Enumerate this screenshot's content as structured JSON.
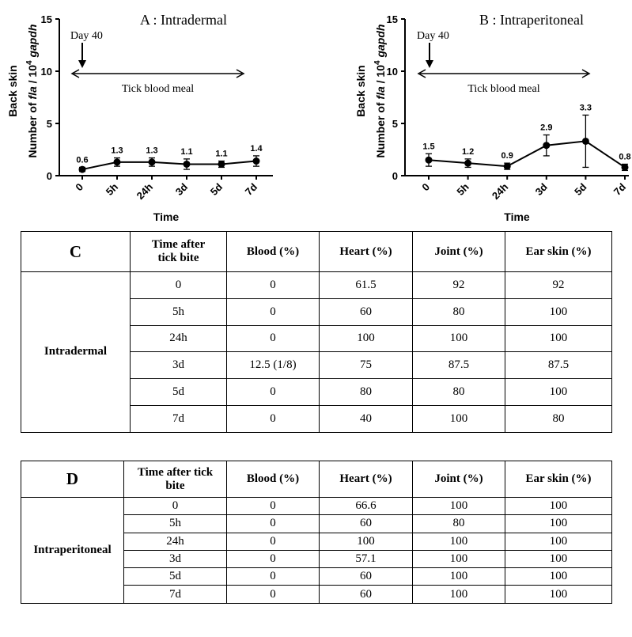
{
  "chart_data": [
    {
      "type": "line",
      "title": "A : Intradermal",
      "ylabel_line1": "Back skin",
      "ylabel_pre": "Number of ",
      "ylabel_fla": "fla",
      "ylabel_mid": " / 10",
      "ylabel_sup": "4",
      "ylabel_gapdh": "gapdh",
      "xlabel": "Time",
      "ylim": [
        0,
        15
      ],
      "yticks": [
        "0",
        "5",
        "10",
        "15"
      ],
      "categories": [
        "0",
        "5h",
        "24h",
        "3d",
        "5d",
        "7d"
      ],
      "values": [
        0.6,
        1.3,
        1.3,
        1.1,
        1.1,
        1.4
      ],
      "value_labels": [
        "0.6",
        "1.3",
        "1.3",
        "1.1",
        "1.1",
        "1.4"
      ],
      "errors": [
        0.2,
        0.4,
        0.4,
        0.5,
        0.3,
        0.5
      ],
      "annotation_day": "Day 40",
      "annotation_meal": "Tick blood meal"
    },
    {
      "type": "line",
      "title": "B : Intraperitoneal",
      "ylabel_line1": "Back skin",
      "ylabel_pre": "Number of ",
      "ylabel_fla": "fla",
      "ylabel_mid": " / 10",
      "ylabel_sup": "4",
      "ylabel_gapdh": "gapdh",
      "xlabel": "Time",
      "ylim": [
        0,
        15
      ],
      "yticks": [
        "0",
        "5",
        "10",
        "15"
      ],
      "categories": [
        "0",
        "5h",
        "24h",
        "3d",
        "5d",
        "7d"
      ],
      "values": [
        1.5,
        1.2,
        0.9,
        2.9,
        3.3,
        0.8
      ],
      "value_labels": [
        "1.5",
        "1.2",
        "0.9",
        "2.9",
        "3.3",
        "0.8"
      ],
      "errors": [
        0.6,
        0.4,
        0.3,
        1.0,
        2.5,
        0.3
      ],
      "annotation_day": "Day 40",
      "annotation_meal": "Tick blood meal"
    }
  ],
  "tables": {
    "C": {
      "panel": "C",
      "headers": [
        "Time after tick bite",
        "Blood (%)",
        "Heart (%)",
        "Joint (%)",
        "Ear skin (%)"
      ],
      "group": "Intradermal",
      "rows": [
        [
          "0",
          "0",
          "61.5",
          "92",
          "92"
        ],
        [
          "5h",
          "0",
          "60",
          "80",
          "100"
        ],
        [
          "24h",
          "0",
          "100",
          "100",
          "100"
        ],
        [
          "3d",
          "12.5 (1/8)",
          "75",
          "87.5",
          "87.5"
        ],
        [
          "5d",
          "0",
          "80",
          "80",
          "100"
        ],
        [
          "7d",
          "0",
          "40",
          "100",
          "80"
        ]
      ]
    },
    "D": {
      "panel": "D",
      "headers": [
        "Time after tick bite",
        "Blood (%)",
        "Heart (%)",
        "Joint (%)",
        "Ear skin (%)"
      ],
      "group": "Intraperitoneal",
      "rows": [
        [
          "0",
          "0",
          "66.6",
          "100",
          "100"
        ],
        [
          "5h",
          "0",
          "60",
          "80",
          "100"
        ],
        [
          "24h",
          "0",
          "100",
          "100",
          "100"
        ],
        [
          "3d",
          "0",
          "57.1",
          "100",
          "100"
        ],
        [
          "5d",
          "0",
          "60",
          "100",
          "100"
        ],
        [
          "7d",
          "0",
          "60",
          "100",
          "100"
        ]
      ]
    }
  }
}
